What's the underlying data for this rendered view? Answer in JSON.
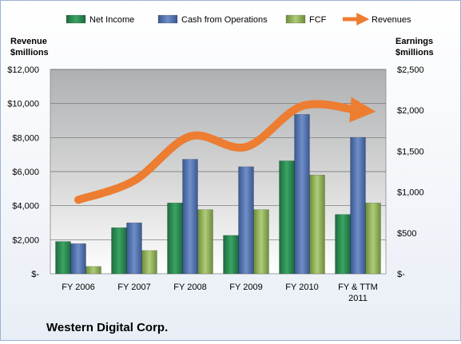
{
  "chart_data": {
    "type": "bar",
    "title": "",
    "company": "Western Digital Corp.",
    "categories": [
      "FY 2006",
      "FY 2007",
      "FY 2008",
      "FY 2009",
      "FY 2010",
      "FY & TTM 2011"
    ],
    "series": [
      {
        "name": "Net Income",
        "axis": "right",
        "color": "#2e8b57",
        "values": [
          395,
          564,
          867,
          470,
          1382,
          726
        ]
      },
      {
        "name": "Cash from Operations",
        "axis": "right",
        "color": "#4f6fa8",
        "values": [
          369,
          624,
          1401,
          1310,
          1950,
          1670
        ]
      },
      {
        "name": "FCF",
        "axis": "right",
        "color": "#8fae55",
        "values": [
          90,
          285,
          785,
          785,
          1208,
          867
        ]
      },
      {
        "name": "Revenues",
        "axis": "left",
        "type": "line",
        "color": "#ed7d31",
        "values": [
          4340,
          5470,
          8070,
          7450,
          9850,
          9600
        ]
      }
    ],
    "left_axis": {
      "label_line1": "Revenue",
      "label_line2": "$millions",
      "ylim": [
        0,
        12000
      ],
      "ticks": [
        0,
        2000,
        4000,
        6000,
        8000,
        10000,
        12000
      ],
      "tick_labels": [
        "$-",
        "$2,000",
        "$4,000",
        "$6,000",
        "$8,000",
        "$10,000",
        "$12,000"
      ]
    },
    "right_axis": {
      "label_line1": "Earnings",
      "label_line2": "$millions",
      "ylim": [
        0,
        2500
      ],
      "ticks": [
        0,
        500,
        1000,
        1500,
        2000,
        2500
      ],
      "tick_labels": [
        "$-",
        "$500",
        "$1,000",
        "$1,500",
        "$2,000",
        "$2,500"
      ]
    },
    "grid": true,
    "legend_position": "top"
  }
}
